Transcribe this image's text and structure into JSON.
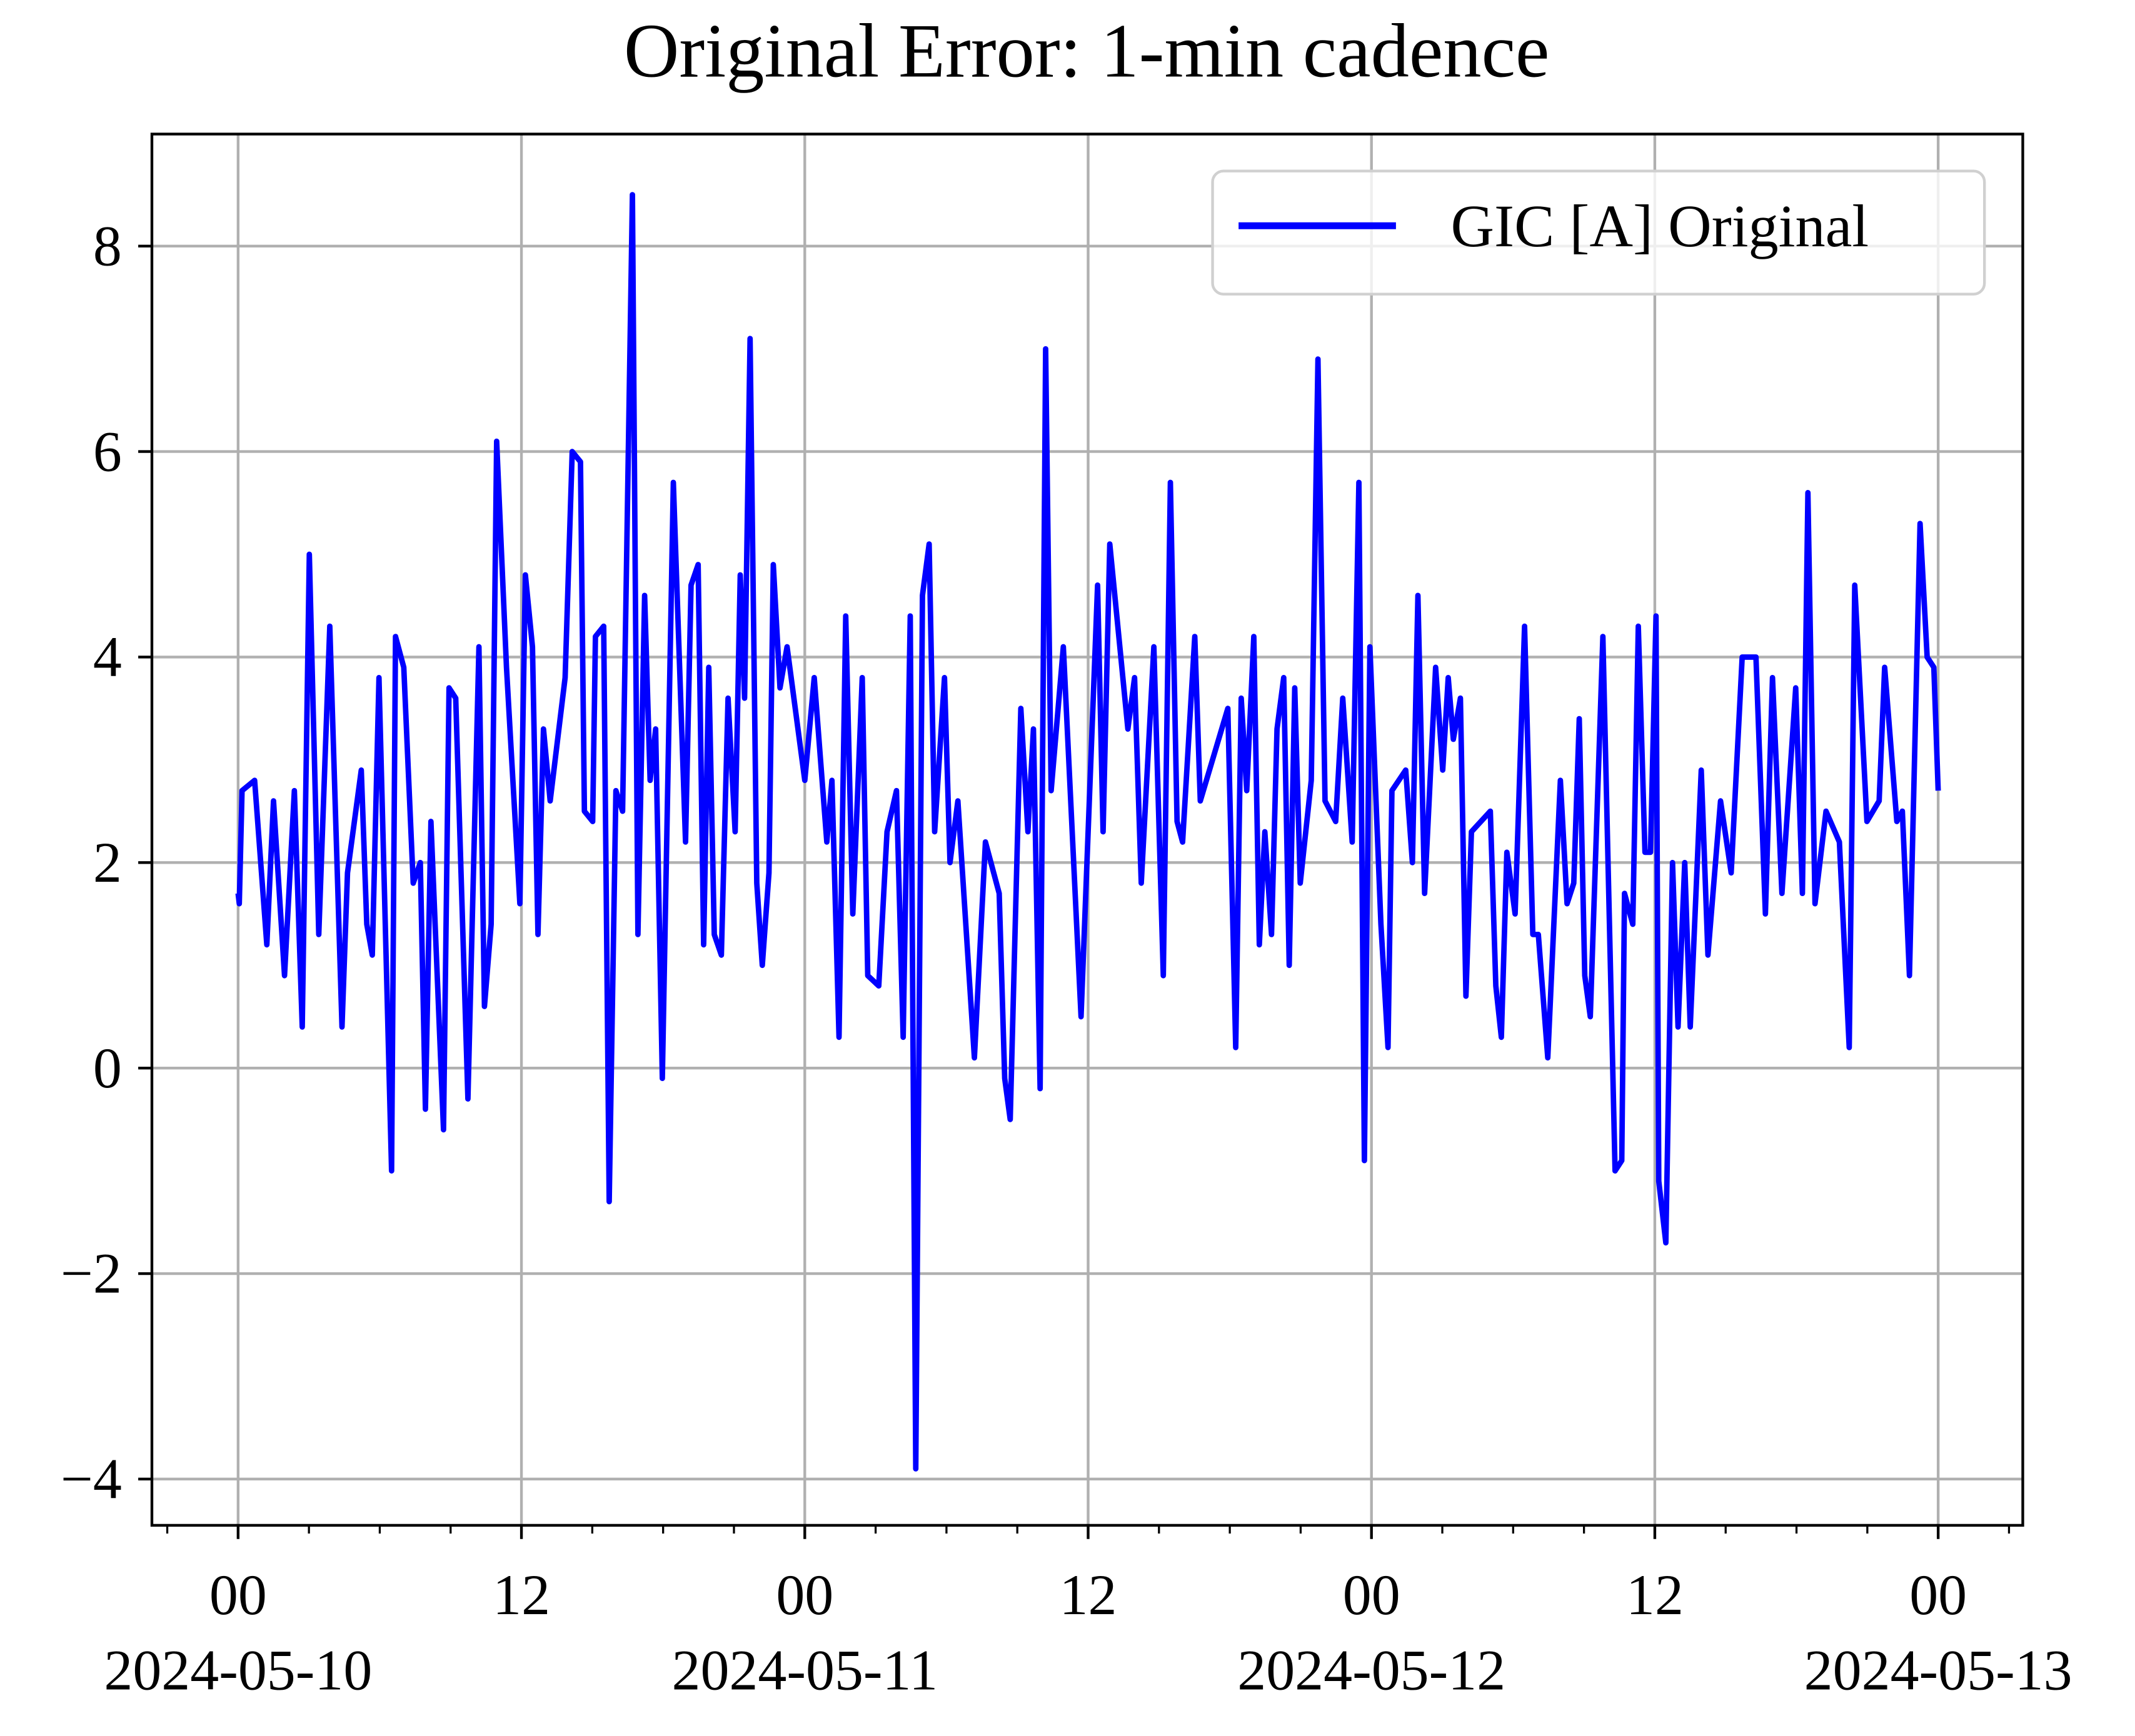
{
  "chart_data": {
    "type": "line",
    "title": "Original Error: 1-min cadence",
    "x": [
      "2024-05-10 00:00",
      "2024-05-10 00:03",
      "2024-05-10 00:10",
      "2024-05-10 00:42",
      "2024-05-10 01:13",
      "2024-05-10 01:30",
      "2024-05-10 01:58",
      "2024-05-10 02:23",
      "2024-05-10 02:43",
      "2024-05-10 03:01",
      "2024-05-10 03:25",
      "2024-05-10 03:53",
      "2024-05-10 04:24",
      "2024-05-10 04:38",
      "2024-05-10 05:13",
      "2024-05-10 05:27",
      "2024-05-10 05:41",
      "2024-05-10 05:58",
      "2024-05-10 06:30",
      "2024-05-10 06:40",
      "2024-05-10 07:01",
      "2024-05-10 07:25",
      "2024-05-10 07:43",
      "2024-05-10 07:56",
      "2024-05-10 08:10",
      "2024-05-10 08:42",
      "2024-05-10 08:56",
      "2024-05-10 09:13",
      "2024-05-10 09:44",
      "2024-05-10 10:12",
      "2024-05-10 10:26",
      "2024-05-10 10:43",
      "2024-05-10 10:57",
      "2024-05-10 11:22",
      "2024-05-10 11:56",
      "2024-05-10 12:10",
      "2024-05-10 12:28",
      "2024-05-10 12:42",
      "2024-05-10 12:56",
      "2024-05-10 13:13",
      "2024-05-10 13:51",
      "2024-05-10 14:09",
      "2024-05-10 14:30",
      "2024-05-10 14:40",
      "2024-05-10 15:01",
      "2024-05-10 15:08",
      "2024-05-10 15:29",
      "2024-05-10 15:43",
      "2024-05-10 16:00",
      "2024-05-10 16:17",
      "2024-05-10 16:42",
      "2024-05-10 16:56",
      "2024-05-10 17:13",
      "2024-05-10 17:27",
      "2024-05-10 17:41",
      "2024-05-10 17:58",
      "2024-05-10 18:26",
      "2024-05-10 18:57",
      "2024-05-10 19:11",
      "2024-05-10 19:29",
      "2024-05-10 19:43",
      "2024-05-10 19:56",
      "2024-05-10 20:10",
      "2024-05-10 20:28",
      "2024-05-10 20:45",
      "2024-05-10 21:03",
      "2024-05-10 21:16",
      "2024-05-10 21:27",
      "2024-05-10 21:41",
      "2024-05-10 21:58",
      "2024-05-10 22:12",
      "2024-05-10 22:29",
      "2024-05-10 22:40",
      "2024-05-10 22:57",
      "2024-05-10 23:15",
      "2024-05-11 00:00",
      "2024-05-11 00:24",
      "2024-05-11 00:56",
      "2024-05-11 01:09",
      "2024-05-11 01:27",
      "2024-05-11 01:44",
      "2024-05-11 02:02",
      "2024-05-11 02:26",
      "2024-05-11 02:40",
      "2024-05-11 03:08",
      "2024-05-11 03:29",
      "2024-05-11 03:53",
      "2024-05-11 04:10",
      "2024-05-11 04:28",
      "2024-05-11 04:42",
      "2024-05-11 04:59",
      "2024-05-11 05:16",
      "2024-05-11 05:30",
      "2024-05-11 05:55",
      "2024-05-11 06:09",
      "2024-05-11 06:29",
      "2024-05-11 07:11",
      "2024-05-11 07:39",
      "2024-05-11 08:14",
      "2024-05-11 08:28",
      "2024-05-11 08:42",
      "2024-05-11 09:09",
      "2024-05-11 09:27",
      "2024-05-11 09:41",
      "2024-05-11 09:58",
      "2024-05-11 10:12",
      "2024-05-11 10:26",
      "2024-05-11 10:57",
      "2024-05-11 11:42",
      "2024-05-11 12:24",
      "2024-05-11 12:38",
      "2024-05-11 12:55",
      "2024-05-11 13:41",
      "2024-05-11 13:58",
      "2024-05-11 14:15",
      "2024-05-11 14:47",
      "2024-05-11 15:11",
      "2024-05-11 15:29",
      "2024-05-11 15:46",
      "2024-05-11 16:00",
      "2024-05-11 16:31",
      "2024-05-11 16:45",
      "2024-05-11 17:55",
      "2024-05-11 18:15",
      "2024-05-11 18:29",
      "2024-05-11 18:43",
      "2024-05-11 19:01",
      "2024-05-11 19:15",
      "2024-05-11 19:29",
      "2024-05-11 19:46",
      "2024-05-11 20:00",
      "2024-05-11 20:17",
      "2024-05-11 20:31",
      "2024-05-11 20:45",
      "2024-05-11 20:59",
      "2024-05-11 21:27",
      "2024-05-11 21:44",
      "2024-05-11 22:02",
      "2024-05-11 22:29",
      "2024-05-11 22:47",
      "2024-05-11 23:11",
      "2024-05-11 23:28",
      "2024-05-11 23:42",
      "2024-05-11 23:56",
      "2024-05-12 00:24",
      "2024-05-12 00:42",
      "2024-05-12 00:52",
      "2024-05-12 01:27",
      "2024-05-12 01:44",
      "2024-05-12 01:58",
      "2024-05-12 02:15",
      "2024-05-12 02:43",
      "2024-05-12 03:01",
      "2024-05-12 03:15",
      "2024-05-12 03:28",
      "2024-05-12 03:46",
      "2024-05-12 04:00",
      "2024-05-12 04:14",
      "2024-05-12 05:02",
      "2024-05-12 05:16",
      "2024-05-12 05:30",
      "2024-05-12 05:44",
      "2024-05-12 06:05",
      "2024-05-12 06:29",
      "2024-05-12 06:50",
      "2024-05-12 07:04",
      "2024-05-12 07:28",
      "2024-05-12 08:00",
      "2024-05-12 08:17",
      "2024-05-12 08:34",
      "2024-05-12 08:48",
      "2024-05-12 09:02",
      "2024-05-12 09:16",
      "2024-05-12 09:48",
      "2024-05-12 10:19",
      "2024-05-12 10:36",
      "2024-05-12 10:43",
      "2024-05-12 11:04",
      "2024-05-12 11:18",
      "2024-05-12 11:35",
      "2024-05-12 11:49",
      "2024-05-12 12:03",
      "2024-05-12 12:10",
      "2024-05-12 12:28",
      "2024-05-12 12:45",
      "2024-05-12 12:59",
      "2024-05-12 13:16",
      "2024-05-12 13:30",
      "2024-05-12 13:58",
      "2024-05-12 14:15",
      "2024-05-12 14:47",
      "2024-05-12 15:14",
      "2024-05-12 15:42",
      "2024-05-12 16:17",
      "2024-05-12 16:41",
      "2024-05-12 16:59",
      "2024-05-12 17:23",
      "2024-05-12 17:58",
      "2024-05-12 18:15",
      "2024-05-12 18:29",
      "2024-05-12 18:47",
      "2024-05-12 19:15",
      "2024-05-12 19:49",
      "2024-05-12 20:14",
      "2024-05-12 20:28",
      "2024-05-12 20:59",
      "2024-05-12 21:30",
      "2024-05-12 21:44",
      "2024-05-12 22:15",
      "2024-05-12 22:29",
      "2024-05-12 22:47",
      "2024-05-12 23:14",
      "2024-05-12 23:32",
      "2024-05-12 23:49",
      "2024-05-13 00:00"
    ],
    "series": [
      {
        "name": "GIC [A] Original",
        "color": "#0000ff",
        "values": [
          1.7,
          1.6,
          2.7,
          2.8,
          1.2,
          2.6,
          0.9,
          2.7,
          0.4,
          5.0,
          1.3,
          4.3,
          0.4,
          1.9,
          2.9,
          1.4,
          1.1,
          3.8,
          -1.0,
          4.2,
          3.9,
          1.8,
          2.0,
          -0.4,
          2.4,
          -0.6,
          3.7,
          3.6,
          -0.3,
          4.1,
          0.6,
          1.4,
          6.1,
          3.9,
          1.6,
          4.8,
          4.1,
          1.3,
          3.3,
          2.6,
          3.8,
          6.0,
          5.9,
          2.5,
          2.4,
          4.2,
          4.3,
          -1.3,
          2.7,
          2.5,
          8.5,
          1.3,
          4.6,
          2.8,
          3.3,
          -0.1,
          5.7,
          2.2,
          4.7,
          4.9,
          1.2,
          3.9,
          1.3,
          1.1,
          3.6,
          2.3,
          4.8,
          3.6,
          7.1,
          1.8,
          1.0,
          1.9,
          4.9,
          3.7,
          4.1,
          2.8,
          3.8,
          2.2,
          2.8,
          0.3,
          4.4,
          1.5,
          3.8,
          0.9,
          0.8,
          2.3,
          2.7,
          0.3,
          4.4,
          -3.9,
          4.6,
          5.1,
          2.3,
          3.8,
          2.0,
          2.6,
          0.1,
          2.2,
          1.7,
          -0.1,
          -0.5,
          3.5,
          2.3,
          3.3,
          -0.2,
          7.0,
          2.7,
          4.1,
          0.5,
          4.7,
          2.3,
          5.1,
          3.3,
          3.8,
          1.8,
          4.1,
          0.9,
          5.7,
          2.4,
          2.2,
          4.2,
          2.6,
          3.5,
          0.2,
          3.6,
          2.7,
          4.2,
          1.2,
          2.3,
          1.3,
          3.3,
          3.8,
          1.0,
          3.7,
          1.8,
          2.8,
          6.9,
          2.6,
          2.4,
          3.6,
          2.2,
          5.7,
          -0.9,
          4.1,
          1.4,
          0.2,
          2.7,
          2.9,
          2.0,
          4.6,
          1.7,
          3.9,
          2.9,
          3.8,
          3.2,
          3.6,
          0.7,
          2.3,
          2.5,
          0.8,
          0.3,
          2.1,
          1.5,
          4.3,
          1.3,
          1.3,
          0.1,
          2.8,
          1.6,
          1.8,
          3.4,
          0.9,
          0.5,
          4.2,
          -1.0,
          -0.9,
          1.7,
          1.4,
          4.3,
          2.1,
          2.1,
          4.4,
          -1.1,
          -1.7,
          2.0,
          0.4,
          2.0,
          0.4,
          2.9,
          1.1,
          2.6,
          1.9,
          4.0,
          4.0,
          1.5,
          3.8,
          1.7,
          3.7,
          1.7,
          5.6,
          1.6,
          2.5,
          2.2,
          0.2,
          4.7,
          2.4,
          2.6,
          3.9,
          2.4,
          2.5,
          0.9,
          5.3,
          4.0,
          3.9,
          2.7
        ]
      }
    ],
    "xlim": [
      "2024-05-09 20:21",
      "2024-05-13 03:35"
    ],
    "xticks": [
      {
        "value": "2024-05-10 00:00",
        "label": "00",
        "sublabel": "2024-05-10"
      },
      {
        "value": "2024-05-10 12:00",
        "label": "12"
      },
      {
        "value": "2024-05-11 00:00",
        "label": "00",
        "sublabel": "2024-05-11"
      },
      {
        "value": "2024-05-11 12:00",
        "label": "12"
      },
      {
        "value": "2024-05-12 00:00",
        "label": "00",
        "sublabel": "2024-05-12"
      },
      {
        "value": "2024-05-12 12:00",
        "label": "12"
      },
      {
        "value": "2024-05-13 00:00",
        "label": "00",
        "sublabel": "2024-05-13"
      }
    ],
    "xminorticks": [
      "2024-05-09 21:00",
      "2024-05-10 03:00",
      "2024-05-10 06:00",
      "2024-05-10 09:00",
      "2024-05-10 15:00",
      "2024-05-10 18:00",
      "2024-05-10 21:00",
      "2024-05-11 03:00",
      "2024-05-11 06:00",
      "2024-05-11 09:00",
      "2024-05-11 15:00",
      "2024-05-11 18:00",
      "2024-05-11 21:00",
      "2024-05-12 03:00",
      "2024-05-12 06:00",
      "2024-05-12 09:00",
      "2024-05-12 15:00",
      "2024-05-12 18:00",
      "2024-05-12 21:00",
      "2024-05-13 03:00"
    ],
    "ylim": [
      -4.45,
      9.09
    ],
    "yticks": [
      {
        "value": -4,
        "label": "−4"
      },
      {
        "value": -2,
        "label": "−2"
      },
      0,
      2,
      4,
      6,
      8
    ],
    "grid": true,
    "legend": "upper-right"
  }
}
